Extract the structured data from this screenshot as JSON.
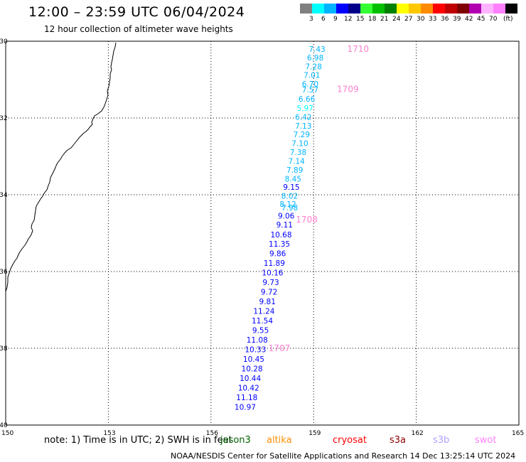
{
  "title": "12:00 – 23:59 UTC 06/04/2024",
  "subtitle": "12 hour collection of altimeter wave heights",
  "note": "note:  1) Time is in UTC;  2) SWH is in feet",
  "footer": "NOAA/NESDIS Center for Satellite Applications and Research    14 Dec 13:25:14 UTC 2024",
  "legend": {
    "unit": "(ft)",
    "colors": [
      "#808080",
      "#00ffff",
      "#00b4ff",
      "#0000ff",
      "#00008b",
      "#33ff33",
      "#00c000",
      "#008000",
      "#ffff00",
      "#ffc800",
      "#ff8c00",
      "#ff0000",
      "#c00000",
      "#800000",
      "#b000b0",
      "#ffb4ff",
      "#ff80ff",
      "#000000"
    ],
    "labels": [
      "3",
      "6",
      "9",
      "12",
      "15",
      "18",
      "21",
      "24",
      "27",
      "30",
      "33",
      "36",
      "39",
      "42",
      "45",
      "70"
    ]
  },
  "missions": [
    {
      "name": "jason3",
      "color": "#006400"
    },
    {
      "name": "altika",
      "color": "#ff8c00"
    },
    {
      "name": "cryosat",
      "color": "#ff0000"
    },
    {
      "name": "s3a",
      "color": "#8b0000"
    },
    {
      "name": "s3b",
      "color": "#b0a0ff"
    },
    {
      "name": "swot",
      "color": "#ff80ff"
    }
  ],
  "map": {
    "lon_range": [
      150,
      165
    ],
    "lat_range": [
      -40,
      -30
    ],
    "lon_ticks": [
      "150",
      "153",
      "156",
      "159",
      "162",
      "165"
    ],
    "lat_ticks": [
      "-30",
      "-32",
      "-34",
      "-36",
      "-38",
      "-40"
    ],
    "time_labels": [
      {
        "text": "1710",
        "lon": 160.3,
        "lat": -30.2
      },
      {
        "text": "1709",
        "lon": 160.0,
        "lat": -31.25
      },
      {
        "text": "1708",
        "lon": 158.8,
        "lat": -34.65
      },
      {
        "text": "1707",
        "lon": 158.0,
        "lat": -38.0
      }
    ],
    "time_label_color": "#ff80d0",
    "observations": [
      {
        "v": "7.43",
        "lon": 159.1,
        "lat": -30.2
      },
      {
        "v": "6.98",
        "lon": 159.05,
        "lat": -30.43
      },
      {
        "v": "7.28",
        "lon": 159.0,
        "lat": -30.66
      },
      {
        "v": "7.01",
        "lon": 158.95,
        "lat": -30.88
      },
      {
        "v": "6.70",
        "lon": 158.9,
        "lat": -31.11
      },
      {
        "v": "7.57",
        "lon": 158.9,
        "lat": -31.26
      },
      {
        "v": "6.66",
        "lon": 158.8,
        "lat": -31.5
      },
      {
        "v": "5.97",
        "lon": 158.75,
        "lat": -31.74
      },
      {
        "v": "6.42",
        "lon": 158.7,
        "lat": -31.97
      },
      {
        "v": "7.13",
        "lon": 158.7,
        "lat": -32.2
      },
      {
        "v": "7.29",
        "lon": 158.65,
        "lat": -32.43
      },
      {
        "v": "7.10",
        "lon": 158.6,
        "lat": -32.66
      },
      {
        "v": "7.38",
        "lon": 158.55,
        "lat": -32.89
      },
      {
        "v": "7.14",
        "lon": 158.5,
        "lat": -33.12
      },
      {
        "v": "7.89",
        "lon": 158.45,
        "lat": -33.35
      },
      {
        "v": "8.45",
        "lon": 158.4,
        "lat": -33.58
      },
      {
        "v": "9.15",
        "lon": 158.35,
        "lat": -33.8
      },
      {
        "v": "8.02",
        "lon": 158.3,
        "lat": -34.03
      },
      {
        "v": "8.12",
        "lon": 158.25,
        "lat": -34.24
      },
      {
        "v": "7.98",
        "lon": 158.3,
        "lat": -34.33
      },
      {
        "v": "9.06",
        "lon": 158.2,
        "lat": -34.55
      },
      {
        "v": "9.11",
        "lon": 158.15,
        "lat": -34.78
      },
      {
        "v": "10.68",
        "lon": 158.05,
        "lat": -35.04
      },
      {
        "v": "11.35",
        "lon": 158.0,
        "lat": -35.28
      },
      {
        "v": "9.86",
        "lon": 157.95,
        "lat": -35.53
      },
      {
        "v": "11.89",
        "lon": 157.85,
        "lat": -35.78
      },
      {
        "v": "10.16",
        "lon": 157.8,
        "lat": -36.03
      },
      {
        "v": "9.73",
        "lon": 157.75,
        "lat": -36.28
      },
      {
        "v": "9.72",
        "lon": 157.7,
        "lat": -36.53
      },
      {
        "v": "9.81",
        "lon": 157.65,
        "lat": -36.78
      },
      {
        "v": "11.24",
        "lon": 157.55,
        "lat": -37.03
      },
      {
        "v": "11.54",
        "lon": 157.5,
        "lat": -37.28
      },
      {
        "v": "9.55",
        "lon": 157.45,
        "lat": -37.53
      },
      {
        "v": "11.08",
        "lon": 157.35,
        "lat": -37.78
      },
      {
        "v": "10.33",
        "lon": 157.3,
        "lat": -38.03
      },
      {
        "v": "10.45",
        "lon": 157.25,
        "lat": -38.28
      },
      {
        "v": "10.28",
        "lon": 157.2,
        "lat": -38.53
      },
      {
        "v": "10.44",
        "lon": 157.15,
        "lat": -38.78
      },
      {
        "v": "10.42",
        "lon": 157.1,
        "lat": -39.03
      },
      {
        "v": "11.18",
        "lon": 157.05,
        "lat": -39.28
      },
      {
        "v": "10.97",
        "lon": 157.0,
        "lat": -39.53
      }
    ]
  }
}
